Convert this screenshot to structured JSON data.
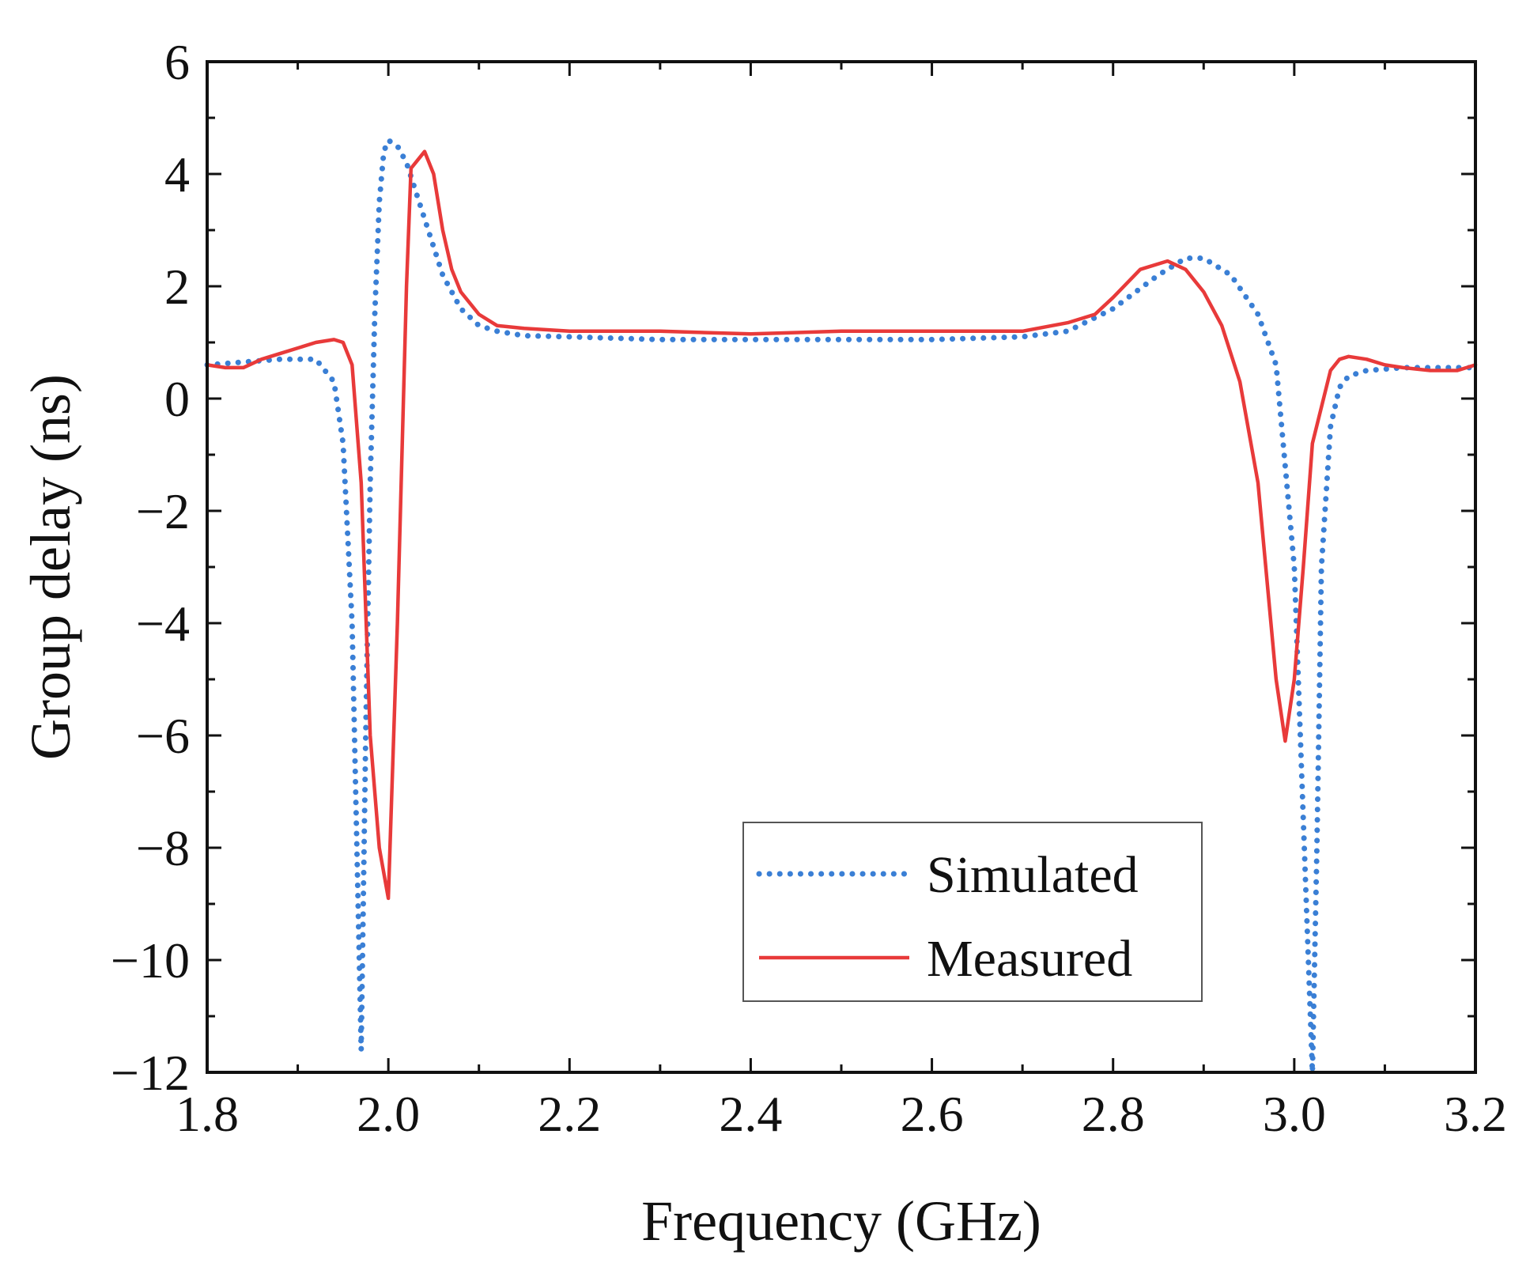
{
  "chart_data": {
    "type": "line",
    "title": "",
    "xlabel": "Frequency (GHz)",
    "ylabel": "Group delay (ns)",
    "xlim": [
      1.8,
      3.2
    ],
    "ylim": [
      -12,
      6
    ],
    "xticks": [
      1.8,
      2.0,
      2.2,
      2.4,
      2.6,
      2.8,
      3.0,
      3.2
    ],
    "xtick_labels": [
      "1.8",
      "2.0",
      "2.2",
      "2.4",
      "2.6",
      "2.8",
      "3.0",
      "3.2"
    ],
    "yticks": [
      -12,
      -10,
      -8,
      -6,
      -4,
      -2,
      0,
      2,
      4,
      6
    ],
    "ytick_labels": [
      "−12",
      "−10",
      "−8",
      "−6",
      "−4",
      "−2",
      "0",
      "2",
      "4",
      "6"
    ],
    "grid": false,
    "legend": {
      "position": "bottom-right"
    },
    "series": [
      {
        "name": "Simulated",
        "color": "#3a7fd5",
        "style": "dotted",
        "x": [
          1.8,
          1.84,
          1.88,
          1.92,
          1.94,
          1.95,
          1.96,
          1.97,
          1.975,
          1.98,
          1.985,
          1.99,
          1.995,
          2.0,
          2.01,
          2.02,
          2.04,
          2.06,
          2.08,
          2.1,
          2.12,
          2.15,
          2.2,
          2.3,
          2.4,
          2.5,
          2.6,
          2.7,
          2.75,
          2.8,
          2.85,
          2.88,
          2.9,
          2.93,
          2.96,
          2.98,
          3.0,
          3.01,
          3.02,
          3.025,
          3.03,
          3.04,
          3.05,
          3.06,
          3.08,
          3.12,
          3.16,
          3.2
        ],
        "y": [
          0.6,
          0.65,
          0.7,
          0.7,
          0.3,
          -0.8,
          -4.0,
          -11.6,
          -6.0,
          -1.5,
          1.5,
          3.5,
          4.4,
          4.6,
          4.5,
          4.2,
          3.2,
          2.2,
          1.6,
          1.3,
          1.2,
          1.12,
          1.1,
          1.05,
          1.05,
          1.05,
          1.05,
          1.1,
          1.2,
          1.6,
          2.2,
          2.5,
          2.5,
          2.2,
          1.5,
          0.6,
          -3.0,
          -7.5,
          -12.0,
          -8.0,
          -3.0,
          -0.5,
          0.2,
          0.4,
          0.5,
          0.55,
          0.55,
          0.55
        ]
      },
      {
        "name": "Measured",
        "color": "#e83a3a",
        "style": "solid",
        "x": [
          1.8,
          1.82,
          1.84,
          1.86,
          1.88,
          1.9,
          1.92,
          1.94,
          1.95,
          1.96,
          1.97,
          1.98,
          1.99,
          2.0,
          2.01,
          2.02,
          2.025,
          2.03,
          2.04,
          2.05,
          2.06,
          2.07,
          2.08,
          2.1,
          2.12,
          2.15,
          2.2,
          2.3,
          2.4,
          2.5,
          2.6,
          2.7,
          2.75,
          2.78,
          2.8,
          2.83,
          2.86,
          2.88,
          2.9,
          2.92,
          2.94,
          2.96,
          2.98,
          2.99,
          3.0,
          3.01,
          3.02,
          3.04,
          3.05,
          3.06,
          3.08,
          3.1,
          3.12,
          3.15,
          3.18,
          3.2
        ],
        "y": [
          0.6,
          0.55,
          0.55,
          0.7,
          0.8,
          0.9,
          1.0,
          1.05,
          1.0,
          0.6,
          -1.5,
          -6.0,
          -8.0,
          -8.9,
          -4.0,
          2.0,
          4.1,
          4.2,
          4.4,
          4.0,
          3.0,
          2.3,
          1.9,
          1.5,
          1.3,
          1.25,
          1.2,
          1.2,
          1.15,
          1.2,
          1.2,
          1.2,
          1.35,
          1.5,
          1.8,
          2.3,
          2.45,
          2.3,
          1.9,
          1.3,
          0.3,
          -1.5,
          -5.0,
          -6.1,
          -5.0,
          -3.0,
          -0.8,
          0.5,
          0.7,
          0.75,
          0.7,
          0.6,
          0.55,
          0.5,
          0.5,
          0.6
        ]
      }
    ]
  }
}
